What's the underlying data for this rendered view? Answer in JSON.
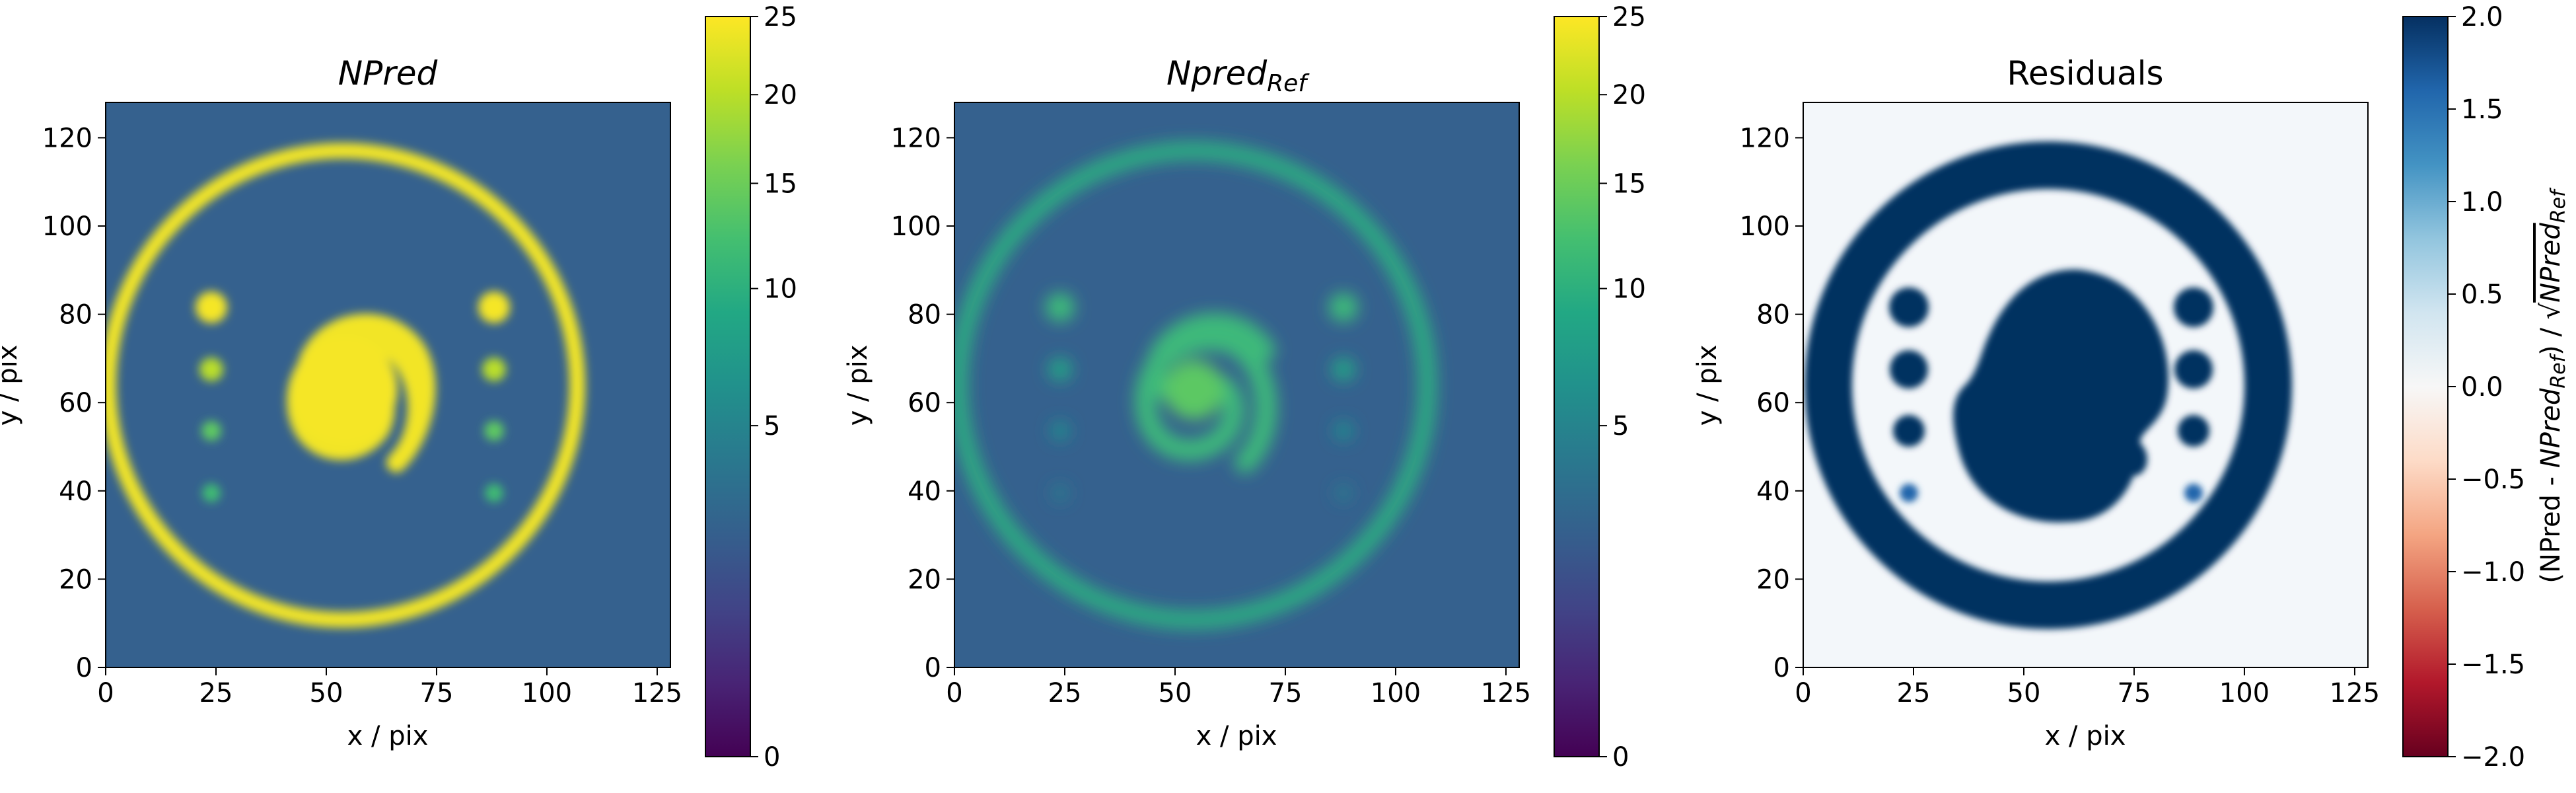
{
  "chart_data": [
    {
      "type": "heatmap",
      "title": "NPred",
      "xlabel": "x / pix",
      "ylabel": "y / pix",
      "xlim": [
        0,
        128
      ],
      "ylim": [
        0,
        128
      ],
      "xticks": [
        "0",
        "25",
        "50",
        "75",
        "100",
        "125"
      ],
      "yticks": [
        "0",
        "20",
        "40",
        "60",
        "80",
        "100",
        "120"
      ],
      "colormap": "viridis",
      "colorbar": {
        "scale": "power",
        "range": [
          0,
          25
        ],
        "ticks": [
          "0",
          "5",
          "10",
          "15",
          "20",
          "25"
        ],
        "label": ""
      },
      "background_value": 3.3,
      "features": {
        "ring": {
          "center": [
            54,
            64
          ],
          "radius": 53,
          "width": 3,
          "value": 22
        },
        "spiral_core": {
          "center": [
            54,
            63
          ],
          "value": 24
        },
        "point_sources_left": {
          "x": 24,
          "y": [
            81,
            67,
            53,
            39
          ],
          "values": [
            23,
            14,
            9,
            7
          ]
        },
        "point_sources_right": {
          "x": 88,
          "y": [
            81,
            67,
            53,
            39
          ],
          "values": [
            23,
            14,
            9,
            7
          ]
        }
      }
    },
    {
      "type": "heatmap",
      "title_main": "Npred",
      "title_sub": "Ref",
      "xlabel": "x / pix",
      "ylabel": "y / pix",
      "xlim": [
        0,
        128
      ],
      "ylim": [
        0,
        128
      ],
      "xticks": [
        "0",
        "25",
        "50",
        "75",
        "100",
        "125"
      ],
      "yticks": [
        "0",
        "20",
        "40",
        "60",
        "80",
        "100",
        "120"
      ],
      "colormap": "viridis",
      "colorbar": {
        "scale": "power",
        "range": [
          0,
          25
        ],
        "ticks": [
          "0",
          "5",
          "10",
          "15",
          "20",
          "25"
        ],
        "label": ""
      },
      "background_value": 3.3,
      "features": {
        "ring": {
          "center": [
            54,
            64
          ],
          "radius": 53,
          "width": 3,
          "value": 8
        },
        "spiral_core": {
          "center": [
            54,
            63
          ],
          "value": 9
        },
        "point_sources_left": {
          "x": 24,
          "y": [
            81,
            67,
            53,
            39
          ],
          "values": [
            8,
            6,
            5,
            4
          ]
        },
        "point_sources_right": {
          "x": 88,
          "y": [
            81,
            67,
            53,
            39
          ],
          "values": [
            8,
            6,
            5,
            4
          ]
        }
      }
    },
    {
      "type": "heatmap",
      "title": "Residuals",
      "xlabel": "x / pix",
      "ylabel": "y / pix",
      "xlim": [
        0,
        128
      ],
      "ylim": [
        0,
        128
      ],
      "xticks": [
        "0",
        "25",
        "50",
        "75",
        "100",
        "125"
      ],
      "yticks": [
        "0",
        "20",
        "40",
        "60",
        "80",
        "100",
        "120"
      ],
      "colormap": "RdBu",
      "colorbar": {
        "scale": "linear",
        "range": [
          -2.0,
          2.0
        ],
        "ticks": [
          "2.0",
          "1.5",
          "1.0",
          "0.5",
          "0.0",
          "−0.5",
          "−1.0",
          "−1.5",
          "−2.0"
        ],
        "label_parts": [
          "(NPred - ",
          "NPred",
          "Ref",
          ") / ",
          "√",
          "NPred",
          "Ref"
        ]
      },
      "background_value": 0.25,
      "features": {
        "ring": {
          "center": [
            55,
            64
          ],
          "radius": 49,
          "width": 5,
          "value": 2.0
        },
        "core": {
          "center": [
            53,
            64
          ],
          "rx": 18,
          "ry": 23,
          "value": 2.0
        },
        "point_sources_left": {
          "x": 24,
          "y": [
            81,
            67,
            53,
            39
          ],
          "values": [
            2.0,
            2.0,
            2.0,
            1.2
          ]
        },
        "point_sources_right": {
          "x": 88,
          "y": [
            81,
            67,
            53,
            39
          ],
          "values": [
            2.0,
            2.0,
            2.0,
            1.2
          ]
        }
      }
    }
  ]
}
